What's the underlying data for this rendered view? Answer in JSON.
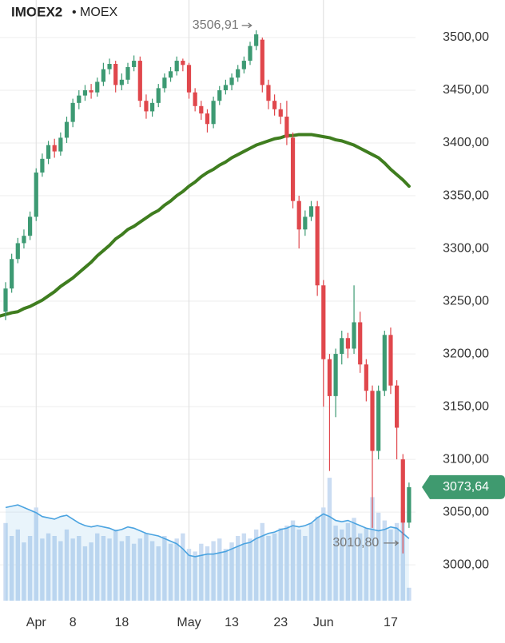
{
  "chart_data": {
    "type": "candlestick",
    "title": "IMOEX2",
    "subtitle": "• MOEX",
    "categories": [
      null,
      null,
      null,
      null,
      null,
      "Apr",
      null,
      null,
      null,
      null,
      null,
      "8",
      null,
      null,
      null,
      null,
      null,
      null,
      null,
      "18",
      null,
      null,
      null,
      null,
      null,
      null,
      null,
      null,
      null,
      null,
      "May",
      null,
      null,
      null,
      null,
      null,
      null,
      "13",
      null,
      null,
      null,
      null,
      null,
      null,
      null,
      "23",
      null,
      null,
      null,
      null,
      null,
      null,
      "Jun",
      null,
      null,
      null,
      null,
      null,
      null,
      null,
      null,
      null,
      null,
      "17",
      null,
      null,
      null
    ],
    "open": [
      3240,
      3262,
      3290,
      3305,
      3312,
      3330,
      3372,
      3385,
      3398,
      3392,
      3405,
      3420,
      3438,
      3445,
      3450,
      3448,
      3458,
      3470,
      3475,
      3455,
      3460,
      3472,
      3478,
      3440,
      3430,
      3438,
      3452,
      3462,
      3468,
      3478,
      3474,
      3448,
      3435,
      3428,
      3418,
      3440,
      3450,
      3455,
      3462,
      3470,
      3478,
      3492,
      3498,
      3455,
      3440,
      3432,
      3425,
      3405,
      3345,
      3318,
      3330,
      3340,
      3265,
      3195,
      3160,
      3200,
      3215,
      3205,
      3230,
      3190,
      3165,
      3108,
      3165,
      3218,
      3170,
      3100,
      3040
    ],
    "high": [
      3268,
      3295,
      3310,
      3318,
      3335,
      3376,
      3390,
      3402,
      3404,
      3410,
      3425,
      3442,
      3450,
      3455,
      3456,
      3462,
      3476,
      3480,
      3478,
      3466,
      3476,
      3483,
      3482,
      3446,
      3442,
      3456,
      3466,
      3472,
      3482,
      3480,
      3476,
      3452,
      3440,
      3432,
      3444,
      3454,
      3460,
      3466,
      3474,
      3482,
      3496,
      3506.91,
      3500,
      3460,
      3446,
      3438,
      3440,
      3410,
      3350,
      3336,
      3345,
      3345,
      3270,
      3200,
      3205,
      3222,
      3220,
      3265,
      3240,
      3195,
      3170,
      3170,
      3222,
      3225,
      3175,
      3105,
      3078
    ],
    "low": [
      3232,
      3258,
      3286,
      3300,
      3308,
      3326,
      3368,
      3380,
      3386,
      3388,
      3400,
      3415,
      3432,
      3440,
      3442,
      3444,
      3454,
      3465,
      3448,
      3450,
      3456,
      3468,
      3434,
      3423,
      3425,
      3434,
      3448,
      3458,
      3464,
      3468,
      3442,
      3430,
      3422,
      3410,
      3414,
      3436,
      3446,
      3450,
      3458,
      3466,
      3474,
      3488,
      3448,
      3432,
      3426,
      3418,
      3398,
      3338,
      3300,
      3312,
      3326,
      3255,
      3150,
      3089,
      3140,
      3190,
      3196,
      3200,
      3182,
      3155,
      3035,
      3100,
      3160,
      3162,
      3100,
      3010.8,
      3035
    ],
    "close": [
      3262,
      3290,
      3305,
      3312,
      3330,
      3372,
      3385,
      3398,
      3392,
      3405,
      3420,
      3438,
      3445,
      3450,
      3448,
      3458,
      3470,
      3475,
      3455,
      3460,
      3472,
      3478,
      3440,
      3430,
      3438,
      3452,
      3462,
      3468,
      3478,
      3474,
      3448,
      3435,
      3428,
      3418,
      3440,
      3450,
      3455,
      3462,
      3470,
      3478,
      3492,
      3503,
      3455,
      3440,
      3432,
      3425,
      3405,
      3345,
      3318,
      3330,
      3340,
      3265,
      3195,
      3160,
      3200,
      3215,
      3205,
      3230,
      3190,
      3165,
      3108,
      3165,
      3218,
      3170,
      3130,
      3040,
      3073.64
    ],
    "up_color": "#3d9a73",
    "down_color": "#e0474c",
    "ma": {
      "color": "#3f7d1f",
      "values": [
        3236,
        3239,
        3240,
        3243,
        3245,
        3248,
        3251,
        3255,
        3259,
        3264,
        3268,
        3272,
        3277,
        3282,
        3287,
        3293,
        3298,
        3303,
        3309,
        3313,
        3318,
        3321,
        3325,
        3329,
        3333,
        3336,
        3341,
        3345,
        3350,
        3354,
        3359,
        3363,
        3368,
        3372,
        3375,
        3379,
        3382,
        3386,
        3389,
        3392,
        3395,
        3398,
        3400,
        3402,
        3404,
        3405,
        3407,
        3407,
        3408,
        3408,
        3408,
        3407,
        3406,
        3405,
        3403,
        3402,
        3400,
        3398,
        3395,
        3392,
        3389,
        3386,
        3381,
        3375,
        3370,
        3365,
        3359
      ]
    },
    "volume": {
      "color": "#cadcf2",
      "ylim": [
        0,
        100
      ],
      "values": [
        60,
        50,
        55,
        45,
        50,
        72,
        48,
        52,
        50,
        46,
        55,
        48,
        50,
        42,
        45,
        52,
        50,
        48,
        55,
        46,
        50,
        44,
        48,
        52,
        46,
        42,
        50,
        44,
        48,
        52,
        40,
        38,
        44,
        42,
        46,
        48,
        40,
        45,
        50,
        52,
        48,
        55,
        60,
        50,
        52,
        56,
        58,
        62,
        55,
        50,
        60,
        65,
        72,
        95,
        58,
        55,
        60,
        64,
        52,
        56,
        80,
        68,
        62,
        55,
        60,
        72,
        10
      ]
    },
    "volume_ma": {
      "color": "#4aa3e0",
      "values": [
        72,
        73,
        74,
        72,
        70,
        68,
        65,
        64,
        63,
        65,
        66,
        63,
        60,
        58,
        57,
        58,
        57,
        56,
        54,
        55,
        57,
        56,
        54,
        52,
        51,
        50,
        48,
        46,
        44,
        40,
        35,
        34,
        35,
        36,
        36,
        37,
        38,
        40,
        42,
        44,
        45,
        48,
        50,
        52,
        53,
        55,
        56,
        58,
        57,
        58,
        60,
        64,
        67,
        65,
        62,
        61,
        62,
        60,
        58,
        56,
        55,
        54,
        55,
        57,
        56,
        52,
        48
      ]
    },
    "ylim": [
      2966,
      3535.6
    ],
    "yticks": [
      {
        "value": 3000,
        "label": "3000,00"
      },
      {
        "value": 3050,
        "label": "3050,00"
      },
      {
        "value": 3100,
        "label": "3100,00"
      },
      {
        "value": 3150,
        "label": "3150,00"
      },
      {
        "value": 3200,
        "label": "3200,00"
      },
      {
        "value": 3250,
        "label": "3250,00"
      },
      {
        "value": 3300,
        "label": "3300,00"
      },
      {
        "value": 3350,
        "label": "3350,00"
      },
      {
        "value": 3400,
        "label": "3400,00"
      },
      {
        "value": 3450,
        "label": "3450,00"
      },
      {
        "value": 3500,
        "label": "3500,00"
      }
    ],
    "grid": true,
    "high_label": {
      "value": 3506.91,
      "label": "3506,91"
    },
    "low_label": {
      "value": 3010.8,
      "label": "3010,80"
    },
    "last_price": {
      "value": 3073.64,
      "label": "3073,64",
      "color": "#3f9a6f"
    }
  }
}
